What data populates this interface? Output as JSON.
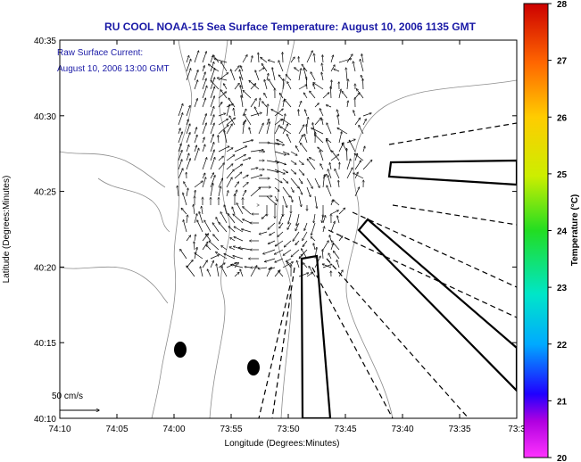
{
  "chart_data": {
    "type": "map-vector-field",
    "title": "RU COOL  NOAA-15  Sea Surface Temperature:  August 10, 2006 1135 GMT",
    "annotation_lines": [
      "Raw Surface Current:",
      "August 10, 2006 13:00 GMT"
    ],
    "scale_label": "50 cm/s",
    "xlabel": "Longitude (Degrees:Minutes)",
    "ylabel": "Latitude (Degrees:Minutes)",
    "x_ticks": [
      "74:10",
      "74:05",
      "74:00",
      "73:55",
      "73:50",
      "73:45",
      "73:40",
      "73:35",
      "73:3"
    ],
    "y_ticks": [
      "40:35",
      "40:30",
      "40:25",
      "40:20",
      "40:15",
      "40:10"
    ],
    "xlim_min": [
      -74.1667,
      -73.5
    ],
    "ylim_min": [
      40.1667,
      40.5833
    ],
    "colorbar": {
      "label": "Temperature (°C)",
      "ticks": [
        "28",
        "27",
        "26",
        "25",
        "24",
        "23",
        "22",
        "21",
        "20"
      ],
      "range": [
        20,
        28
      ]
    },
    "grid": false
  },
  "colors": {
    "title": "#1a1aa6",
    "annotation": "#1a1aa6",
    "frame": "#000000",
    "contours": "#808080"
  }
}
